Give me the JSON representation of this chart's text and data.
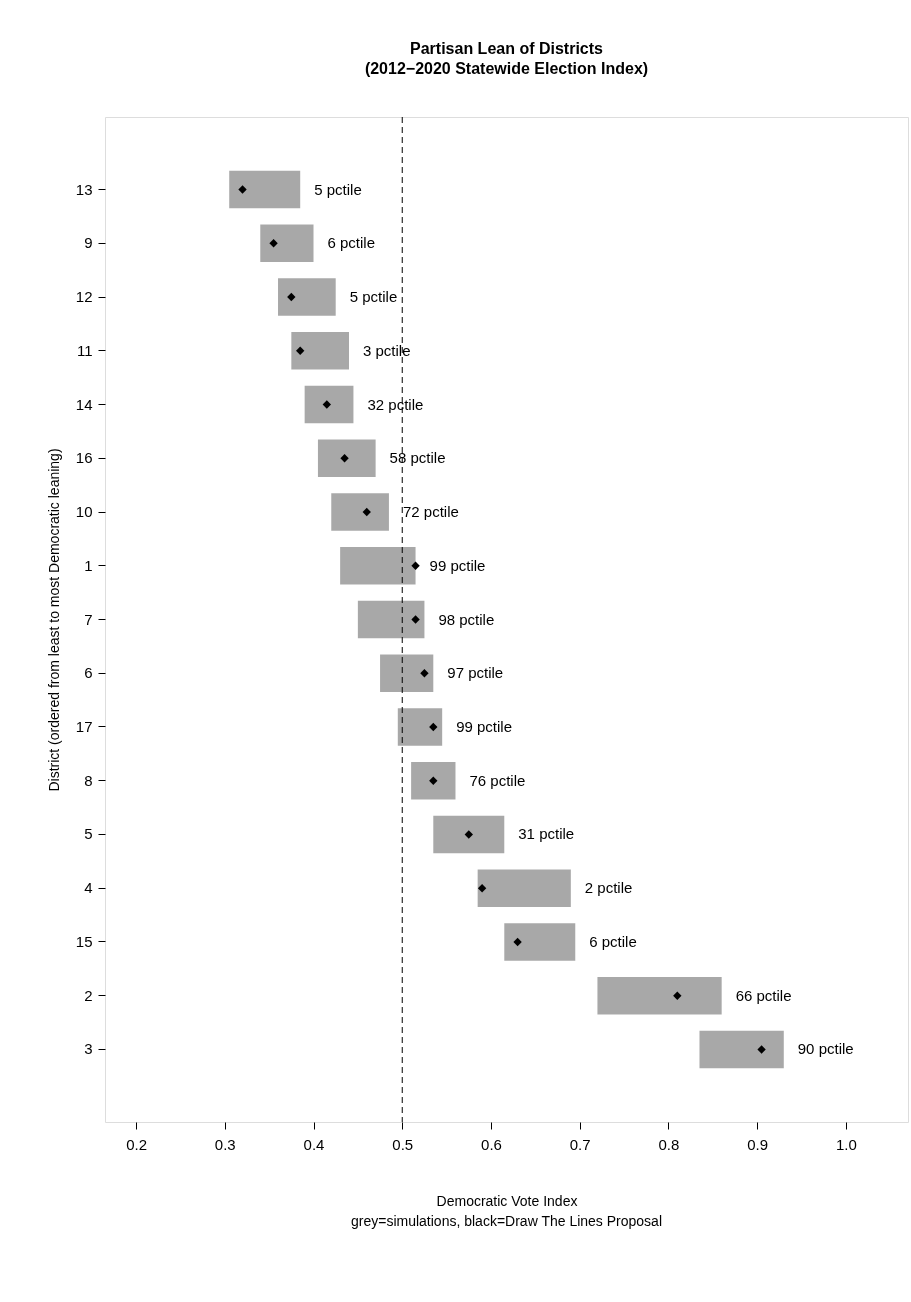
{
  "chart_data": {
    "type": "bar",
    "orientation": "horizontal",
    "title": "Partisan Lean of Districts",
    "subtitle": "(2012−2020 Statewide Election Index)",
    "xlabel": "Democratic Vote Index",
    "ylabel": "District (ordered from least to most Democratic leaning)",
    "annotations": [
      "grey=simulations, black=Draw The Lines Proposal",
      {
        "text": "5 pctile",
        "x": 0.385,
        "y": "13"
      },
      {
        "text": "6 pctile",
        "x": 0.4,
        "y": "9"
      },
      {
        "text": "5 pctile",
        "x": 0.425,
        "y": "12"
      },
      {
        "text": "3 pctile",
        "x": 0.44,
        "y": "11"
      },
      {
        "text": "32 pctile",
        "x": 0.445,
        "y": "14"
      },
      {
        "text": "58 pctile",
        "x": 0.47,
        "y": "16"
      },
      {
        "text": "72 pctile",
        "x": 0.485,
        "y": "10"
      },
      {
        "text": "99 pctile",
        "x": 0.515,
        "y": "1"
      },
      {
        "text": "98 pctile",
        "x": 0.525,
        "y": "7"
      },
      {
        "text": "97 pctile",
        "x": 0.535,
        "y": "6"
      },
      {
        "text": "99 pctile",
        "x": 0.545,
        "y": "17"
      },
      {
        "text": "76 pctile",
        "x": 0.56,
        "y": "8"
      },
      {
        "text": "31 pctile",
        "x": 0.615,
        "y": "5"
      },
      {
        "text": "2 pctile",
        "x": 0.69,
        "y": "4"
      },
      {
        "text": "6 pctile",
        "x": 0.695,
        "y": "15"
      },
      {
        "text": "66 pctile",
        "x": 0.86,
        "y": "2"
      },
      {
        "text": "90 pctile",
        "x": 0.93,
        "y": "3"
      }
    ],
    "categories": [
      "13",
      "9",
      "12",
      "11",
      "14",
      "16",
      "10",
      "1",
      "7",
      "6",
      "17",
      "8",
      "5",
      "4",
      "15",
      "2",
      "3"
    ],
    "series": [
      {
        "color": "#a3a3a3",
        "base": [
          0.305,
          0.34,
          0.36,
          0.375,
          0.39,
          0.405,
          0.42,
          0.43,
          0.45,
          0.475,
          0.495,
          0.51,
          0.535,
          0.585,
          0.615,
          0.72,
          0.835
        ],
        "values": [
          0.08,
          0.06,
          0.065,
          0.065,
          0.055,
          0.065,
          0.065,
          0.085,
          0.075,
          0.06,
          0.05,
          0.05,
          0.08,
          0.105,
          0.08,
          0.14,
          0.095
        ]
      },
      {
        "type": "scatter",
        "color": "#000000",
        "marker": "diamond",
        "values": [
          0.32,
          0.355,
          0.375,
          0.385,
          0.415,
          0.435,
          0.46,
          0.515,
          0.515,
          0.525,
          0.535,
          0.535,
          0.575,
          0.59,
          0.63,
          0.81,
          0.905
        ]
      }
    ],
    "xlim": [
      0.165,
      1.07
    ],
    "xticks": [
      0.2,
      0.3,
      0.4,
      0.5,
      0.6,
      0.7,
      0.8,
      0.9,
      {
        "value": 1.0,
        "label": "1.0"
      }
    ],
    "ref_lines": [
      {
        "axis": "x",
        "value": 0.5,
        "line_style": "dashed",
        "color": "#000000"
      }
    ],
    "grid": false
  }
}
